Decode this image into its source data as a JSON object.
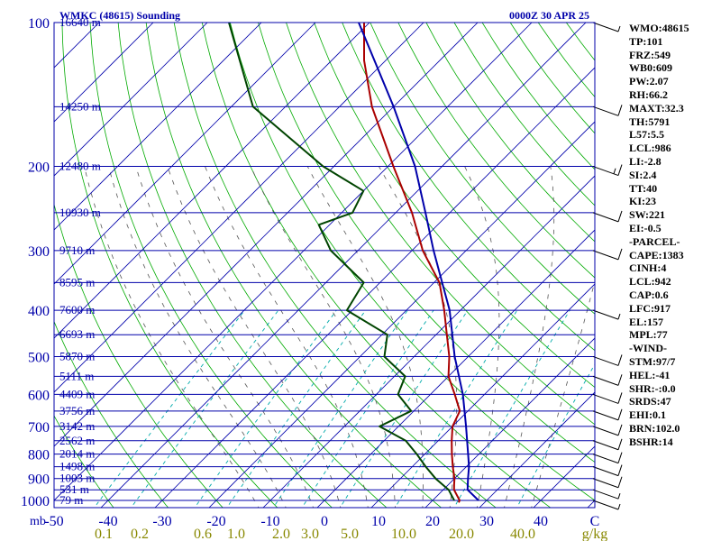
{
  "header": {
    "station_title": "WMKC (48615) Sounding",
    "valid_time": "0000Z 30 APR 25"
  },
  "colors": {
    "frame": "#0000aa",
    "isobar": "#0000aa",
    "isotherm": "#0000aa",
    "dry_adiabat": "#00aa00",
    "moist_adiabat": "#555555",
    "mixing_ratio": "#00aaaa",
    "temperature": "#aa0000",
    "dewpoint": "#004400",
    "parcel": "#0000aa",
    "wind": "#000000",
    "mixing_label": "#888800"
  },
  "indices": [
    "WMO:48615",
    "TP:101",
    "FRZ:549",
    "WB0:609",
    "PW:2.07",
    "RH:66.2",
    "MAXT:32.3",
    "TH:5791",
    "L57:5.5",
    "LCL:986",
    "LI:-2.8",
    "SI:2.4",
    "TT:40",
    "KI:23",
    "SW:221",
    "EI:-0.5",
    "-PARCEL-",
    "CAPE:1383",
    "CINH:4",
    "LCL:942",
    "CAP:0.6",
    "LFC:917",
    "EL:157",
    "MPL:77",
    "-WIND-",
    "STM:97/7",
    "HEL:-41",
    "SHR:-:0.0",
    "SRDS:47",
    "EHI:0.1",
    "BRN:102.0",
    "BSHR:14"
  ],
  "chart_data": {
    "type": "line",
    "title": "WMKC (48615) Sounding",
    "subtitle": "0000Z 30 APR 25",
    "diagram": "skew-T log-p",
    "xlabel": "C",
    "ylabel": "mb",
    "mixing_ratio_unit": "g/kg",
    "xlim_at_1000mb": [
      -50,
      50
    ],
    "ylim_mb": [
      1000,
      100
    ],
    "y_scale": "log",
    "grid": true,
    "pressure_ticks": [
      100,
      200,
      300,
      400,
      500,
      600,
      700,
      800,
      900,
      1000
    ],
    "temperature_ticks": [
      -50,
      -40,
      -30,
      -20,
      -10,
      0,
      10,
      20,
      30,
      40,
      "C"
    ],
    "mixing_ratio_ticks": [
      "0.1",
      "0.2",
      "0.6",
      "1.0",
      "2.0",
      "3.0",
      "5.0",
      "10.0",
      "20.0",
      "40.0"
    ],
    "heights": [
      {
        "p": 100,
        "label": "16640 m"
      },
      {
        "p": 150,
        "label": "14250 m"
      },
      {
        "p": 200,
        "label": "12480 m"
      },
      {
        "p": 250,
        "label": "10930 m"
      },
      {
        "p": 300,
        "label": "9710 m"
      },
      {
        "p": 350,
        "label": "8595 m"
      },
      {
        "p": 400,
        "label": "7600 m"
      },
      {
        "p": 450,
        "label": "6693 m"
      },
      {
        "p": 500,
        "label": "5870 m"
      },
      {
        "p": 550,
        "label": "5111 m"
      },
      {
        "p": 600,
        "label": "4409 m"
      },
      {
        "p": 650,
        "label": "3756 m"
      },
      {
        "p": 700,
        "label": "3142 m"
      },
      {
        "p": 750,
        "label": "2562 m"
      },
      {
        "p": 800,
        "label": "2014 m"
      },
      {
        "p": 850,
        "label": "1498 m"
      },
      {
        "p": 900,
        "label": "1003 m"
      },
      {
        "p": 950,
        "label": "531 m"
      },
      {
        "p": 1000,
        "label": "79 m"
      }
    ],
    "series": [
      {
        "name": "Temperature",
        "points": [
          {
            "p": 1010,
            "t": 25.2
          },
          {
            "p": 1000,
            "t": 25.0
          },
          {
            "p": 950,
            "t": 22.0
          },
          {
            "p": 925,
            "t": 21.0
          },
          {
            "p": 900,
            "t": 20.0
          },
          {
            "p": 850,
            "t": 17.5
          },
          {
            "p": 800,
            "t": 15.0
          },
          {
            "p": 750,
            "t": 12.5
          },
          {
            "p": 700,
            "t": 10.0
          },
          {
            "p": 650,
            "t": 8.5
          },
          {
            "p": 600,
            "t": 4.5
          },
          {
            "p": 550,
            "t": 0.0
          },
          {
            "p": 500,
            "t": -3.5
          },
          {
            "p": 450,
            "t": -8.0
          },
          {
            "p": 400,
            "t": -13.0
          },
          {
            "p": 350,
            "t": -19.0
          },
          {
            "p": 300,
            "t": -28.0
          },
          {
            "p": 250,
            "t": -37.0
          },
          {
            "p": 200,
            "t": -49.0
          },
          {
            "p": 150,
            "t": -64.0
          },
          {
            "p": 120,
            "t": -74.0
          },
          {
            "p": 100,
            "t": -81.0
          }
        ]
      },
      {
        "name": "Dewpoint",
        "points": [
          {
            "p": 1000,
            "t": 24.0
          },
          {
            "p": 950,
            "t": 21.0
          },
          {
            "p": 900,
            "t": 16.5
          },
          {
            "p": 850,
            "t": 12.5
          },
          {
            "p": 800,
            "t": 8.5
          },
          {
            "p": 750,
            "t": 4.0
          },
          {
            "p": 700,
            "t": -3.5
          },
          {
            "p": 650,
            "t": -0.5
          },
          {
            "p": 600,
            "t": -6.0
          },
          {
            "p": 550,
            "t": -8.0
          },
          {
            "p": 500,
            "t": -15.5
          },
          {
            "p": 450,
            "t": -19.0
          },
          {
            "p": 400,
            "t": -31.0
          },
          {
            "p": 350,
            "t": -33.0
          },
          {
            "p": 300,
            "t": -45.0
          },
          {
            "p": 265,
            "t": -52.0
          },
          {
            "p": 250,
            "t": -48.0
          },
          {
            "p": 225,
            "t": -50.0
          },
          {
            "p": 200,
            "t": -62.0
          },
          {
            "p": 150,
            "t": -86.0
          },
          {
            "p": 120,
            "t": -97.0
          },
          {
            "p": 100,
            "t": -106.0
          }
        ]
      },
      {
        "name": "Parcel",
        "points": [
          {
            "p": 1000,
            "t": 28.5
          },
          {
            "p": 950,
            "t": 24.5
          },
          {
            "p": 900,
            "t": 22.5
          },
          {
            "p": 850,
            "t": 20.5
          },
          {
            "p": 800,
            "t": 18.0
          },
          {
            "p": 700,
            "t": 12.5
          },
          {
            "p": 600,
            "t": 6.0
          },
          {
            "p": 500,
            "t": -2.5
          },
          {
            "p": 400,
            "t": -12.0
          },
          {
            "p": 350,
            "t": -18.5
          },
          {
            "p": 300,
            "t": -26.0
          },
          {
            "p": 250,
            "t": -34.5
          },
          {
            "p": 200,
            "t": -45.0
          },
          {
            "p": 150,
            "t": -60.0
          },
          {
            "p": 100,
            "t": -82.0
          }
        ]
      }
    ],
    "wind_barbs": [
      {
        "p": 1000,
        "speed_kt": 5
      },
      {
        "p": 950,
        "speed_kt": 5
      },
      {
        "p": 900,
        "speed_kt": 10
      },
      {
        "p": 850,
        "speed_kt": 10
      },
      {
        "p": 800,
        "speed_kt": 10
      },
      {
        "p": 750,
        "speed_kt": 10
      },
      {
        "p": 700,
        "speed_kt": 10
      },
      {
        "p": 650,
        "speed_kt": 10
      },
      {
        "p": 600,
        "speed_kt": 10
      },
      {
        "p": 550,
        "speed_kt": 10
      },
      {
        "p": 500,
        "speed_kt": 10
      },
      {
        "p": 400,
        "speed_kt": 5
      },
      {
        "p": 300,
        "speed_kt": 10
      },
      {
        "p": 250,
        "speed_kt": 10
      },
      {
        "p": 200,
        "speed_kt": 15
      },
      {
        "p": 150,
        "speed_kt": 10
      },
      {
        "p": 100,
        "speed_kt": 5
      }
    ]
  }
}
